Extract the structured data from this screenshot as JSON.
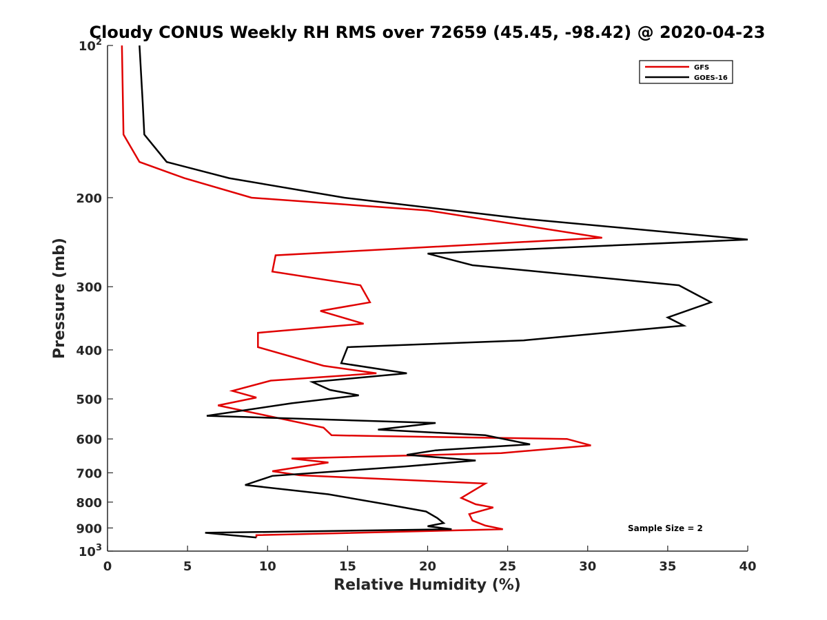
{
  "chart_data": {
    "type": "line",
    "title": "Cloudy CONUS Weekly RH RMS over 72659 (45.45, -98.42) @ 2020-04-23",
    "xlabel": "Relative Humidity (%)",
    "ylabel": "Pressure (mb)",
    "xlim": [
      0,
      40
    ],
    "ylim": [
      100,
      1000
    ],
    "y_scale": "log",
    "y_reversed": true,
    "grid": false,
    "legend_position": "top-right",
    "x_ticks": [
      0,
      5,
      10,
      15,
      20,
      25,
      30,
      35,
      40
    ],
    "x_tick_labels": [
      "0",
      "5",
      "10",
      "15",
      "20",
      "25",
      "30",
      "35",
      "40"
    ],
    "y_ticks": [
      100,
      200,
      300,
      400,
      500,
      600,
      700,
      800,
      900,
      1000
    ],
    "y_tick_labels": [
      {
        "base": "10",
        "sup": "2"
      },
      {
        "base": "200",
        "sup": ""
      },
      {
        "base": "300",
        "sup": ""
      },
      {
        "base": "400",
        "sup": ""
      },
      {
        "base": "500",
        "sup": ""
      },
      {
        "base": "600",
        "sup": ""
      },
      {
        "base": "700",
        "sup": ""
      },
      {
        "base": "800",
        "sup": ""
      },
      {
        "base": "900",
        "sup": ""
      },
      {
        "base": "10",
        "sup": "3"
      }
    ],
    "series": [
      {
        "name": "GFS",
        "color": "#e00000",
        "points": [
          [
            0.9,
            100
          ],
          [
            1.0,
            150
          ],
          [
            2.0,
            170
          ],
          [
            4.8,
            183
          ],
          [
            9.0,
            200
          ],
          [
            20.0,
            212
          ],
          [
            30.9,
            240
          ],
          [
            10.5,
            260
          ],
          [
            10.3,
            280
          ],
          [
            15.8,
            298
          ],
          [
            16.4,
            322
          ],
          [
            13.3,
            335
          ],
          [
            16.0,
            355
          ],
          [
            9.4,
            370
          ],
          [
            9.4,
            395
          ],
          [
            13.5,
            430
          ],
          [
            16.8,
            445
          ],
          [
            10.2,
            460
          ],
          [
            7.8,
            482
          ],
          [
            9.3,
            497
          ],
          [
            6.9,
            515
          ],
          [
            10.0,
            540
          ],
          [
            13.5,
            570
          ],
          [
            14.0,
            590
          ],
          [
            16.5,
            592
          ],
          [
            28.7,
            600
          ],
          [
            30.2,
            618
          ],
          [
            24.6,
            640
          ],
          [
            11.5,
            656
          ],
          [
            13.8,
            668
          ],
          [
            10.3,
            695
          ],
          [
            12.0,
            708
          ],
          [
            23.6,
            735
          ],
          [
            22.1,
            785
          ],
          [
            23.0,
            808
          ],
          [
            24.1,
            820
          ],
          [
            22.6,
            845
          ],
          [
            22.8,
            870
          ],
          [
            23.6,
            890
          ],
          [
            24.7,
            905
          ],
          [
            9.3,
            930
          ],
          [
            9.3,
            940
          ]
        ]
      },
      {
        "name": "GOES-16",
        "color": "#000000",
        "points": [
          [
            2.0,
            100
          ],
          [
            2.2,
            130
          ],
          [
            2.3,
            150
          ],
          [
            3.7,
            170
          ],
          [
            7.6,
            183
          ],
          [
            14.8,
            200
          ],
          [
            25.9,
            220
          ],
          [
            40.0,
            242
          ],
          [
            20.0,
            258
          ],
          [
            22.8,
            272
          ],
          [
            35.7,
            298
          ],
          [
            37.7,
            322
          ],
          [
            35.0,
            345
          ],
          [
            36.0,
            358
          ],
          [
            26.0,
            383
          ],
          [
            15.0,
            395
          ],
          [
            14.6,
            425
          ],
          [
            18.7,
            445
          ],
          [
            12.8,
            463
          ],
          [
            13.9,
            480
          ],
          [
            15.7,
            492
          ],
          [
            11.5,
            510
          ],
          [
            6.2,
            540
          ],
          [
            20.5,
            558
          ],
          [
            16.9,
            575
          ],
          [
            23.6,
            590
          ],
          [
            26.4,
            615
          ],
          [
            20.5,
            632
          ],
          [
            18.7,
            645
          ],
          [
            23.0,
            662
          ],
          [
            18.6,
            680
          ],
          [
            10.3,
            710
          ],
          [
            8.6,
            740
          ],
          [
            13.8,
            772
          ],
          [
            17.4,
            808
          ],
          [
            19.9,
            835
          ],
          [
            20.6,
            860
          ],
          [
            21.0,
            880
          ],
          [
            20.0,
            893
          ],
          [
            21.5,
            905
          ],
          [
            6.1,
            920
          ],
          [
            9.3,
            940
          ]
        ]
      }
    ],
    "annotations": [
      "Sample Size = 2"
    ]
  }
}
